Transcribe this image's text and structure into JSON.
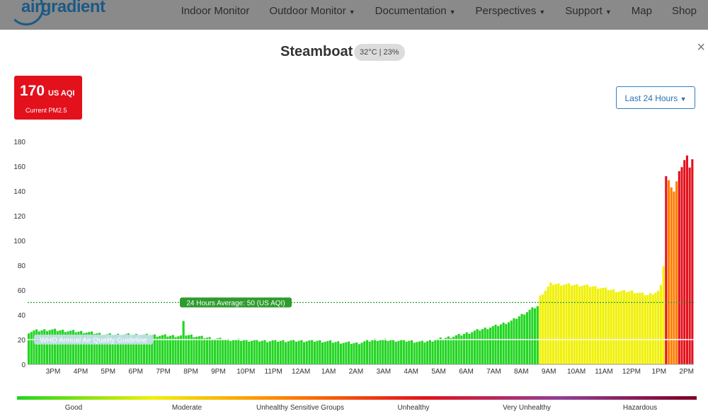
{
  "nav": {
    "logo_text": "airgradient",
    "items": [
      {
        "label": "Indoor Monitor",
        "dropdown": false
      },
      {
        "label": "Outdoor Monitor",
        "dropdown": true
      },
      {
        "label": "Documentation",
        "dropdown": true
      },
      {
        "label": "Perspectives",
        "dropdown": true
      },
      {
        "label": "Support",
        "dropdown": true
      },
      {
        "label": "Map",
        "dropdown": false
      },
      {
        "label": "Shop",
        "dropdown": false
      }
    ]
  },
  "modal": {
    "title": "Steamboat",
    "weather": "32°C | 23%",
    "close_glyph": "×",
    "current": {
      "value": "170",
      "unit": "US AQI",
      "label": "Current PM2.5",
      "color": "#e3111c"
    },
    "range_button": "Last 24 Hours"
  },
  "chart_data": {
    "type": "bar",
    "ylim": [
      0,
      180
    ],
    "yticks": [
      "0",
      "20",
      "40",
      "60",
      "80",
      "100",
      "120",
      "140",
      "160",
      "180"
    ],
    "xticks": [
      "3PM",
      "4PM",
      "5PM",
      "6PM",
      "7PM",
      "8PM",
      "9PM",
      "10PM",
      "11PM",
      "12AM",
      "1AM",
      "2AM",
      "3AM",
      "4AM",
      "5AM",
      "6AM",
      "7AM",
      "8AM",
      "9AM",
      "10AM",
      "11AM",
      "12PM",
      "1PM",
      "2PM"
    ],
    "average": {
      "value": 50,
      "label": "24 Hours Average: 50 (US AQI)",
      "color": "#2e9b2e"
    },
    "guideline": {
      "value": 20,
      "label": "WHO Annual Air Quality Guideline"
    },
    "series_anchors": [
      [
        0,
        26
      ],
      [
        2,
        27
      ],
      [
        8,
        28
      ],
      [
        15,
        27
      ],
      [
        22,
        26
      ],
      [
        30,
        24
      ],
      [
        40,
        24
      ],
      [
        55,
        23
      ],
      [
        58,
        23
      ],
      [
        59,
        34
      ],
      [
        60,
        24
      ],
      [
        66,
        22
      ],
      [
        75,
        20
      ],
      [
        90,
        19
      ],
      [
        110,
        19
      ],
      [
        125,
        17
      ],
      [
        132,
        20
      ],
      [
        145,
        19
      ],
      [
        150,
        18
      ],
      [
        158,
        21
      ],
      [
        165,
        24
      ],
      [
        172,
        28
      ],
      [
        178,
        31
      ],
      [
        184,
        35
      ],
      [
        188,
        40
      ],
      [
        192,
        45
      ],
      [
        194,
        47
      ],
      [
        195,
        55
      ],
      [
        197,
        60
      ],
      [
        199,
        65
      ],
      [
        210,
        64
      ],
      [
        215,
        63
      ],
      [
        225,
        59
      ],
      [
        230,
        59
      ],
      [
        236,
        56
      ],
      [
        240,
        59
      ],
      [
        241,
        63
      ],
      [
        242,
        80
      ],
      [
        243,
        152
      ],
      [
        246,
        140
      ],
      [
        248,
        155
      ],
      [
        250,
        165
      ],
      [
        251,
        168
      ],
      [
        252,
        160
      ],
      [
        253,
        166
      ]
    ],
    "category_colors": [
      "#21d521",
      "#f0f000",
      "#ff7e00",
      "#e3111c",
      "#8f3f97",
      "#7e0023"
    ],
    "categories": [
      "Good",
      "Moderate",
      "Unhealthy Sensitive Groups",
      "Unhealthy",
      "Very Unhealthy",
      "Hazardous"
    ]
  }
}
